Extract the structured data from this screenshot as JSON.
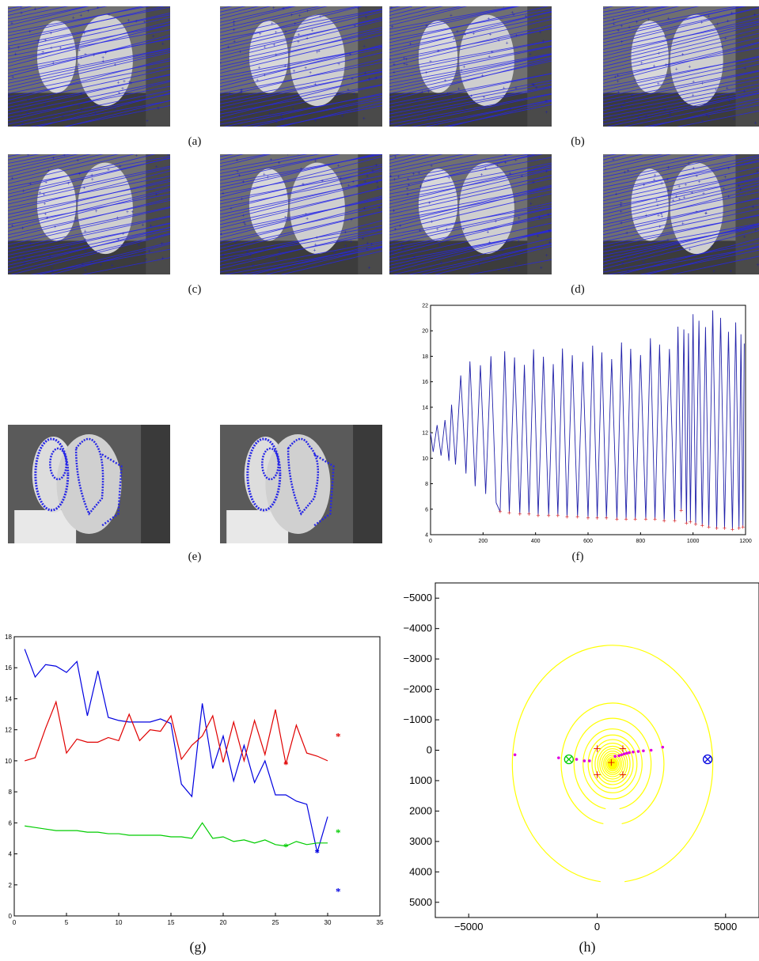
{
  "figure": {
    "captions": {
      "a": "(a)",
      "b": "(b)",
      "c": "(c)",
      "d": "(d)",
      "e": "(e)",
      "f": "(f)",
      "g": "(g)",
      "h": "(h)"
    }
  },
  "colors": {
    "match_blue": "#2626e6",
    "contour_yellow": "#ffff00",
    "line_red": "#e00000",
    "line_green": "#00cc00",
    "line_blue": "#0000e0",
    "point_magenta": "#e000e0"
  },
  "chart_data": [
    {
      "id": "f",
      "type": "line",
      "x_ticks": [
        "0",
        "200",
        "400",
        "600",
        "800",
        "1000",
        "1200"
      ],
      "y_ticks": [
        "4",
        "6",
        "8",
        "10",
        "12",
        "14",
        "16",
        "18",
        "20",
        "22"
      ],
      "xlim": [
        0,
        1200
      ],
      "ylim": [
        4,
        22
      ],
      "series": [
        {
          "color": "#2222aa",
          "style": "line",
          "peaks": [
            [
              25,
              12.5
            ],
            [
              75,
              14.2
            ],
            [
              150,
              17.6
            ],
            [
              300,
              18.5
            ],
            [
              500,
              18.6
            ],
            [
              700,
              19.0
            ],
            [
              900,
              19.6
            ],
            [
              1000,
              21.3
            ],
            [
              1100,
              21.7
            ],
            [
              1190,
              20.2
            ]
          ],
          "troughs_start": 270,
          "troughs_end": 1185
        },
        {
          "color": "#dd2222",
          "style": "plus",
          "points": [
            [
              265,
              5.8
            ],
            [
              300,
              5.7
            ],
            [
              340,
              5.6
            ],
            [
              375,
              5.6
            ],
            [
              410,
              5.5
            ],
            [
              450,
              5.5
            ],
            [
              485,
              5.5
            ],
            [
              520,
              5.4
            ],
            [
              560,
              5.4
            ],
            [
              600,
              5.3
            ],
            [
              635,
              5.3
            ],
            [
              670,
              5.3
            ],
            [
              710,
              5.2
            ],
            [
              745,
              5.2
            ],
            [
              780,
              5.2
            ],
            [
              820,
              5.2
            ],
            [
              855,
              5.2
            ],
            [
              890,
              5.1
            ],
            [
              930,
              5.1
            ],
            [
              955,
              5.9
            ],
            [
              975,
              4.9
            ],
            [
              990,
              5.0
            ],
            [
              1010,
              4.8
            ],
            [
              1035,
              4.7
            ],
            [
              1060,
              4.6
            ],
            [
              1090,
              4.5
            ],
            [
              1120,
              4.5
            ],
            [
              1150,
              4.4
            ],
            [
              1175,
              4.5
            ],
            [
              1190,
              4.6
            ]
          ]
        }
      ]
    },
    {
      "id": "g",
      "type": "line",
      "x_ticks": [
        "0",
        "5",
        "10",
        "15",
        "20",
        "25",
        "30",
        "35"
      ],
      "y_ticks": [
        "0",
        "2",
        "4",
        "6",
        "8",
        "10",
        "12",
        "14",
        "16",
        "18"
      ],
      "xlim": [
        0,
        35
      ],
      "ylim": [
        0,
        18
      ],
      "series": [
        {
          "color": "#0000e0",
          "values": [
            [
              1,
              17.2
            ],
            [
              2,
              15.4
            ],
            [
              3,
              16.2
            ],
            [
              4,
              16.1
            ],
            [
              5,
              15.7
            ],
            [
              6,
              16.4
            ],
            [
              7,
              12.9
            ],
            [
              8,
              15.8
            ],
            [
              9,
              12.8
            ],
            [
              10,
              12.6
            ],
            [
              11,
              12.5
            ],
            [
              12,
              12.5
            ],
            [
              13,
              12.5
            ],
            [
              14,
              12.7
            ],
            [
              15,
              12.4
            ],
            [
              16,
              8.5
            ],
            [
              17,
              7.7
            ],
            [
              18,
              13.7
            ],
            [
              19,
              9.5
            ],
            [
              20,
              11.6
            ],
            [
              21,
              8.7
            ],
            [
              22,
              11.0
            ],
            [
              23,
              8.6
            ],
            [
              24,
              10.0
            ],
            [
              25,
              7.8
            ],
            [
              26,
              7.8
            ],
            [
              27,
              7.4
            ],
            [
              28,
              7.2
            ],
            [
              29,
              4.1
            ],
            [
              30,
              6.4
            ]
          ],
          "markers": [
            [
              29,
              4.1
            ],
            [
              31,
              1.6
            ]
          ]
        },
        {
          "color": "#e00000",
          "values": [
            [
              1,
              10.0
            ],
            [
              2,
              10.2
            ],
            [
              3,
              12.1
            ],
            [
              4,
              13.8
            ],
            [
              5,
              10.5
            ],
            [
              6,
              11.4
            ],
            [
              7,
              11.2
            ],
            [
              8,
              11.2
            ],
            [
              9,
              11.5
            ],
            [
              10,
              11.3
            ],
            [
              11,
              13.0
            ],
            [
              12,
              11.3
            ],
            [
              13,
              12.0
            ],
            [
              14,
              11.9
            ],
            [
              15,
              12.9
            ],
            [
              16,
              10.1
            ],
            [
              17,
              11.0
            ],
            [
              18,
              11.6
            ],
            [
              19,
              12.9
            ],
            [
              20,
              9.9
            ],
            [
              21,
              12.5
            ],
            [
              22,
              10.0
            ],
            [
              23,
              12.6
            ],
            [
              24,
              10.4
            ],
            [
              25,
              13.3
            ],
            [
              26,
              9.8
            ],
            [
              27,
              12.3
            ],
            [
              28,
              10.5
            ],
            [
              29,
              10.3
            ],
            [
              30,
              10.0
            ]
          ],
          "markers": [
            [
              26,
              9.8
            ],
            [
              31,
              11.6
            ]
          ]
        },
        {
          "color": "#00cc00",
          "values": [
            [
              1,
              5.8
            ],
            [
              2,
              5.7
            ],
            [
              3,
              5.6
            ],
            [
              4,
              5.5
            ],
            [
              5,
              5.5
            ],
            [
              6,
              5.5
            ],
            [
              7,
              5.4
            ],
            [
              8,
              5.4
            ],
            [
              9,
              5.3
            ],
            [
              10,
              5.3
            ],
            [
              11,
              5.2
            ],
            [
              12,
              5.2
            ],
            [
              13,
              5.2
            ],
            [
              14,
              5.2
            ],
            [
              15,
              5.1
            ],
            [
              16,
              5.1
            ],
            [
              17,
              5.0
            ],
            [
              18,
              6.0
            ],
            [
              19,
              5.0
            ],
            [
              20,
              5.1
            ],
            [
              21,
              4.8
            ],
            [
              22,
              4.9
            ],
            [
              23,
              4.7
            ],
            [
              24,
              4.9
            ],
            [
              25,
              4.6
            ],
            [
              26,
              4.5
            ],
            [
              27,
              4.8
            ],
            [
              28,
              4.6
            ],
            [
              29,
              4.7
            ],
            [
              30,
              4.7
            ]
          ],
          "markers": [
            [
              26,
              4.5
            ],
            [
              31,
              5.4
            ]
          ]
        }
      ]
    },
    {
      "id": "h",
      "type": "scatter",
      "x_ticks": [
        "−5000",
        "0",
        "5000"
      ],
      "y_ticks": [
        "−5000",
        "−4000",
        "−3000",
        "−2000",
        "−1000",
        "0",
        "1000",
        "2000",
        "3000",
        "4000",
        "5000"
      ],
      "xlim": [
        -6300,
        6300
      ],
      "ylim": [
        5500,
        -5500
      ],
      "y_reversed": true,
      "camera_centers": [
        [
          0,
          -50
        ],
        [
          1000,
          -50
        ],
        [
          0,
          800
        ],
        [
          1000,
          800
        ],
        [
          550,
          400
        ]
      ],
      "estimates": {
        "green": [
          -1100,
          300
        ],
        "blue": [
          4300,
          300
        ]
      },
      "magenta_points": [
        [
          -3200,
          150
        ],
        [
          -1500,
          250
        ],
        [
          -800,
          300
        ],
        [
          -500,
          350
        ],
        [
          -300,
          350
        ],
        [
          700,
          200
        ],
        [
          850,
          180
        ],
        [
          950,
          150
        ],
        [
          1050,
          120
        ],
        [
          1150,
          100
        ],
        [
          1250,
          80
        ],
        [
          1400,
          60
        ],
        [
          1600,
          40
        ],
        [
          1800,
          20
        ],
        [
          2100,
          0
        ],
        [
          2550,
          -100
        ]
      ]
    }
  ]
}
